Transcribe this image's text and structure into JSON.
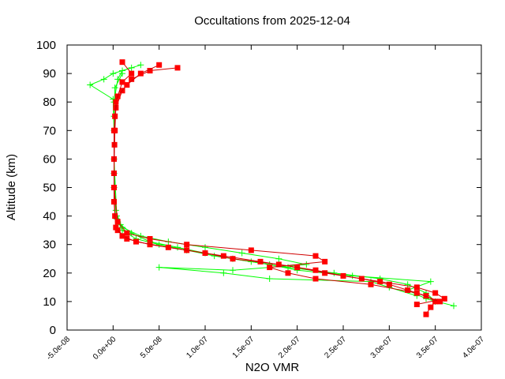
{
  "chart_data": {
    "type": "line",
    "title": "Occultations from 2025-12-04",
    "xlabel": "N2O VMR",
    "ylabel": "Altitude (km)",
    "xlim": [
      -5e-08,
      4e-07
    ],
    "ylim": [
      0,
      100
    ],
    "x_ticks": [
      "-5.0e-08",
      "0.0e+00",
      "5.0e-08",
      "1.0e-07",
      "1.5e-07",
      "2.0e-07",
      "2.5e-07",
      "3.0e-07",
      "3.5e-07",
      "4.0e-07"
    ],
    "x_tick_values": [
      -5e-08,
      0,
      5e-08,
      1e-07,
      1.5e-07,
      2e-07,
      2.5e-07,
      3e-07,
      3.5e-07,
      4e-07
    ],
    "y_ticks": [
      "0",
      "10",
      "20",
      "30",
      "40",
      "50",
      "60",
      "70",
      "80",
      "90",
      "100"
    ],
    "y_tick_values": [
      0,
      10,
      20,
      30,
      40,
      50,
      60,
      70,
      80,
      90,
      100
    ],
    "grid": false,
    "legend": "none",
    "series": [
      {
        "color": "#00ff00",
        "marker": "plus",
        "profiles": [
          [
            [
              3.7e-07,
              8.5
            ],
            [
              3.4e-07,
              11
            ],
            [
              3.2e-07,
              14
            ],
            [
              3.45e-07,
              17
            ],
            [
              2.6e-07,
              19
            ],
            [
              2e-07,
              21
            ],
            [
              1.7e-07,
              23
            ],
            [
              1.3e-07,
              25
            ],
            [
              1e-07,
              27
            ],
            [
              7e-08,
              29
            ],
            [
              4e-08,
              31
            ],
            [
              2e-08,
              34
            ],
            [
              8e-09,
              37
            ],
            [
              3e-09,
              42
            ],
            [
              1e-09,
              55
            ],
            [
              1e-09,
              70
            ],
            [
              0,
              81
            ],
            [
              -2.5e-08,
              86
            ],
            [
              -1e-08,
              88
            ],
            [
              0,
              90
            ],
            [
              2e-08,
              92
            ]
          ],
          [
            [
              3.3e-07,
              12
            ],
            [
              3e-07,
              15
            ],
            [
              2.8e-07,
              17
            ],
            [
              1.7e-07,
              18
            ],
            [
              1.2e-07,
              20
            ],
            [
              5e-08,
              22
            ],
            [
              1.3e-07,
              21
            ],
            [
              2.1e-07,
              23
            ],
            [
              1.8e-07,
              25
            ],
            [
              1.4e-07,
              27
            ],
            [
              1e-07,
              29
            ],
            [
              6e-08,
              31
            ],
            [
              3e-08,
              33
            ],
            [
              1e-08,
              36
            ],
            [
              4e-09,
              40
            ],
            [
              1e-09,
              60
            ],
            [
              1e-09,
              80
            ],
            [
              5e-09,
              88
            ],
            [
              1e-08,
              91
            ],
            [
              3e-08,
              93
            ]
          ],
          [
            [
              3.5e-07,
              10
            ],
            [
              3.4e-07,
              13
            ],
            [
              3.2e-07,
              16
            ],
            [
              2.9e-07,
              18
            ],
            [
              2.4e-07,
              20
            ],
            [
              1.9e-07,
              22
            ],
            [
              1.5e-07,
              24
            ],
            [
              1.1e-07,
              26
            ],
            [
              8e-08,
              28
            ],
            [
              5e-08,
              30
            ],
            [
              2.5e-08,
              32
            ],
            [
              1e-08,
              35
            ],
            [
              4e-09,
              39
            ],
            [
              1e-09,
              50
            ],
            [
              1e-09,
              75
            ],
            [
              2e-09,
              85
            ],
            [
              1e-08,
              90
            ]
          ]
        ]
      },
      {
        "color": "#ff0000",
        "marker": "square",
        "profiles": [
          [
            [
              3.4e-07,
              5.5
            ],
            [
              3.45e-07,
              8
            ],
            [
              3.5e-07,
              10
            ],
            [
              3.4e-07,
              12
            ],
            [
              3.2e-07,
              14
            ],
            [
              3e-07,
              16
            ],
            [
              2.7e-07,
              18
            ],
            [
              2.3e-07,
              20
            ],
            [
              2e-07,
              22
            ],
            [
              1.6e-07,
              24
            ],
            [
              1.2e-07,
              26
            ],
            [
              8e-08,
              28
            ],
            [
              4e-08,
              30
            ],
            [
              1.5e-08,
              32
            ],
            [
              5e-09,
              35
            ],
            [
              2e-09,
              40
            ],
            [
              1e-09,
              50
            ],
            [
              1e-09,
              60
            ],
            [
              2e-09,
              70
            ],
            [
              3e-09,
              78
            ],
            [
              1e-08,
              84
            ],
            [
              2e-08,
              88
            ],
            [
              4e-08,
              91
            ],
            [
              7e-08,
              92
            ]
          ],
          [
            [
              3.3e-07,
              9
            ],
            [
              3.6e-07,
              11
            ],
            [
              3.5e-07,
              13
            ],
            [
              3.3e-07,
              15
            ],
            [
              2.9e-07,
              17
            ],
            [
              2.5e-07,
              19
            ],
            [
              2.2e-07,
              21
            ],
            [
              1.8e-07,
              23
            ],
            [
              1.3e-07,
              25
            ],
            [
              1e-07,
              27
            ],
            [
              6e-08,
              29
            ],
            [
              2.5e-08,
              31
            ],
            [
              1e-08,
              33
            ],
            [
              3e-09,
              36
            ],
            [
              1e-09,
              45
            ],
            [
              1e-09,
              55
            ],
            [
              1.5e-09,
              65
            ],
            [
              2e-09,
              75
            ],
            [
              5e-09,
              82
            ],
            [
              1.5e-08,
              86
            ],
            [
              3e-08,
              90
            ],
            [
              5e-08,
              93
            ]
          ],
          [
            [
              3.55e-07,
              10
            ],
            [
              3.3e-07,
              13
            ],
            [
              2.8e-07,
              16
            ],
            [
              2.2e-07,
              18
            ],
            [
              1.9e-07,
              20
            ],
            [
              1.7e-07,
              22
            ],
            [
              2.3e-07,
              24
            ],
            [
              2.2e-07,
              26
            ],
            [
              1.5e-07,
              28
            ],
            [
              8e-08,
              30
            ],
            [
              4e-08,
              32
            ],
            [
              1.5e-08,
              34
            ],
            [
              5e-09,
              38
            ],
            [
              1e-09,
              50
            ],
            [
              1e-09,
              70
            ],
            [
              3e-09,
              80
            ],
            [
              1e-08,
              87
            ],
            [
              2e-08,
              90
            ],
            [
              1e-08,
              94
            ]
          ]
        ]
      }
    ]
  }
}
